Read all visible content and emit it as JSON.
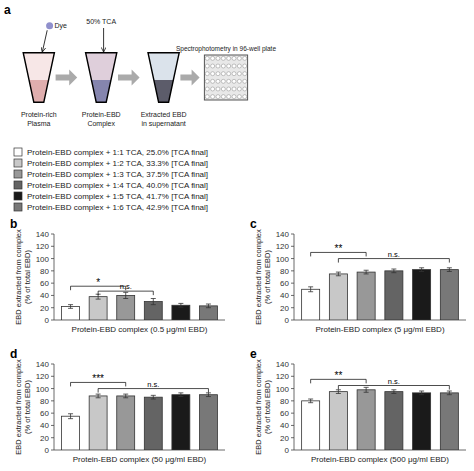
{
  "chart_data": [
    {
      "type": "schematic",
      "title": "a",
      "annotations": [
        "Protein-rich\nPlasma",
        "Protein-EBD\nComplex",
        "Extracted EBD\nin supernatant",
        "Spectrophotometry in 96-well plate",
        "Dye",
        "50% TCA"
      ]
    },
    {
      "type": "bar",
      "title": "b",
      "x_label": "Protein-EBD complex (0.5 μg/ml EBD)",
      "y_label": "EBD extracted from complex\n(% of total EBD)",
      "categories": [
        null
      ],
      "series": [
        {
          "name": "Protein-EBD complex + 1:1 TCA, 25.0% [TCA final]",
          "color": "#ffffff",
          "values": [
            22
          ],
          "errors": [
            3
          ]
        },
        {
          "name": "Protein-EBD complex + 1:2 TCA, 33.3% [TCA final]",
          "color": "#c8c8c8",
          "values": [
            38
          ],
          "errors": [
            4
          ]
        },
        {
          "name": "Protein-EBD complex + 1:3 TCA, 37.5% [TCA final]",
          "color": "#989898",
          "values": [
            40
          ],
          "errors": [
            5
          ]
        },
        {
          "name": "Protein-EBD complex + 1:4 TCA, 40.0% [TCA final]",
          "color": "#646464",
          "values": [
            30
          ],
          "errors": [
            5
          ]
        },
        {
          "name": "Protein-EBD complex + 1:5 TCA, 41.7% [TCA final]",
          "color": "#1a1a1a",
          "values": [
            24
          ],
          "errors": [
            3
          ]
        },
        {
          "name": "Protein-EBD complex + 1:6 TCA, 42.9% [TCA final]",
          "color": "#787878",
          "values": [
            23
          ],
          "errors": [
            3
          ]
        }
      ],
      "ylim": [
        0,
        140
      ],
      "yticks": [
        0,
        20,
        40,
        60,
        80,
        100,
        120,
        140
      ],
      "tick_labels": "y",
      "grid": false,
      "annotations": [
        {
          "text": "*",
          "from": 0,
          "to": 2,
          "y": 55
        },
        {
          "text": "n.s.",
          "from": 1,
          "to": 3,
          "y": 47
        }
      ]
    },
    {
      "type": "bar",
      "title": "c",
      "x_label": "Protein-EBD complex (5 μg/ml EBD)",
      "y_label": "EBD extracted from complex\n(% of total EBD)",
      "categories": [
        null
      ],
      "series": [
        {
          "color": "#ffffff",
          "values": [
            50
          ],
          "errors": [
            4
          ]
        },
        {
          "color": "#c8c8c8",
          "values": [
            75
          ],
          "errors": [
            3
          ]
        },
        {
          "color": "#989898",
          "values": [
            78
          ],
          "errors": [
            3
          ]
        },
        {
          "color": "#646464",
          "values": [
            80
          ],
          "errors": [
            3
          ]
        },
        {
          "color": "#1a1a1a",
          "values": [
            82
          ],
          "errors": [
            3
          ]
        },
        {
          "color": "#787878",
          "values": [
            82
          ],
          "errors": [
            3
          ]
        }
      ],
      "ylim": [
        0,
        140
      ],
      "yticks": [
        0,
        20,
        40,
        60,
        80,
        100,
        120,
        140
      ],
      "tick_labels": "y",
      "grid": false,
      "annotations": [
        {
          "text": "**",
          "from": 0,
          "to": 2,
          "y": 110
        },
        {
          "text": "n.s.",
          "from": 1,
          "to": 5,
          "y": 100
        }
      ]
    },
    {
      "type": "bar",
      "title": "d",
      "x_label": "Protein-EBD complex (50 μg/ml EBD)",
      "y_label": "EBD extracted from complex\n(% of total EBD)",
      "categories": [
        null
      ],
      "series": [
        {
          "color": "#ffffff",
          "values": [
            55
          ],
          "errors": [
            4
          ]
        },
        {
          "color": "#c8c8c8",
          "values": [
            88
          ],
          "errors": [
            3
          ]
        },
        {
          "color": "#989898",
          "values": [
            88
          ],
          "errors": [
            3
          ]
        },
        {
          "color": "#646464",
          "values": [
            86
          ],
          "errors": [
            3
          ]
        },
        {
          "color": "#1a1a1a",
          "values": [
            90
          ],
          "errors": [
            3
          ]
        },
        {
          "color": "#787878",
          "values": [
            90
          ],
          "errors": [
            3
          ]
        }
      ],
      "ylim": [
        0,
        140
      ],
      "yticks": [
        0,
        20,
        40,
        60,
        80,
        100,
        120,
        140
      ],
      "tick_labels": "y",
      "grid": false,
      "annotations": [
        {
          "text": "***",
          "from": 0,
          "to": 2,
          "y": 110
        },
        {
          "text": "n.s.",
          "from": 1,
          "to": 5,
          "y": 100
        }
      ]
    },
    {
      "type": "bar",
      "title": "e",
      "x_label": "Protein-EBD complex (500 μg/ml EBD)",
      "y_label": "EBD extracted from complex\n(% of total EBD)",
      "categories": [
        null
      ],
      "series": [
        {
          "color": "#ffffff",
          "values": [
            80
          ],
          "errors": [
            3
          ]
        },
        {
          "color": "#c8c8c8",
          "values": [
            95
          ],
          "errors": [
            3
          ]
        },
        {
          "color": "#989898",
          "values": [
            98
          ],
          "errors": [
            4
          ]
        },
        {
          "color": "#646464",
          "values": [
            95
          ],
          "errors": [
            3
          ]
        },
        {
          "color": "#1a1a1a",
          "values": [
            93
          ],
          "errors": [
            3
          ]
        },
        {
          "color": "#787878",
          "values": [
            93
          ],
          "errors": [
            3
          ]
        }
      ],
      "ylim": [
        0,
        140
      ],
      "yticks": [
        0,
        20,
        40,
        60,
        80,
        100,
        120,
        140
      ],
      "tick_labels": "y",
      "grid": false,
      "annotations": [
        {
          "text": "**",
          "from": 0,
          "to": 2,
          "y": 115
        },
        {
          "text": "n.s.",
          "from": 1,
          "to": 5,
          "y": 105
        }
      ]
    }
  ]
}
